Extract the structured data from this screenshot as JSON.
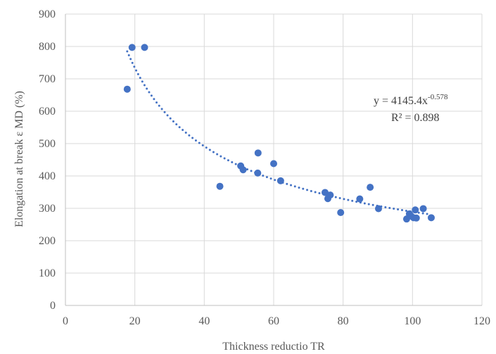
{
  "chart_data": {
    "type": "scatter",
    "xlabel": "Thickness reductio TR",
    "ylabel": "Elongation at break ε MD (%)",
    "xlim": [
      0,
      120
    ],
    "ylim": [
      0,
      900
    ],
    "xticks": [
      0,
      20,
      40,
      60,
      80,
      100,
      120
    ],
    "yticks": [
      0,
      100,
      200,
      300,
      400,
      500,
      600,
      700,
      800,
      900
    ],
    "xtick_labels": [
      "0",
      "20",
      "40",
      "60",
      "80",
      "100",
      "120"
    ],
    "ytick_labels": [
      "0",
      "100",
      "200",
      "300",
      "400",
      "500",
      "600",
      "700",
      "800",
      "900"
    ],
    "grid": true,
    "legend": "none",
    "marker_color": "#4472C4",
    "points": [
      {
        "x": 17.8,
        "y": 668
      },
      {
        "x": 19.2,
        "y": 797
      },
      {
        "x": 22.8,
        "y": 797
      },
      {
        "x": 44.5,
        "y": 368
      },
      {
        "x": 50.5,
        "y": 431
      },
      {
        "x": 51.2,
        "y": 419
      },
      {
        "x": 55.5,
        "y": 471
      },
      {
        "x": 55.4,
        "y": 409
      },
      {
        "x": 60.0,
        "y": 438
      },
      {
        "x": 62.0,
        "y": 385
      },
      {
        "x": 74.8,
        "y": 349
      },
      {
        "x": 75.6,
        "y": 330
      },
      {
        "x": 76.3,
        "y": 341
      },
      {
        "x": 79.3,
        "y": 287
      },
      {
        "x": 84.8,
        "y": 329
      },
      {
        "x": 87.8,
        "y": 365
      },
      {
        "x": 90.2,
        "y": 299
      },
      {
        "x": 98.3,
        "y": 267
      },
      {
        "x": 99.1,
        "y": 283
      },
      {
        "x": 99.6,
        "y": 276
      },
      {
        "x": 100.3,
        "y": 271
      },
      {
        "x": 100.8,
        "y": 295
      },
      {
        "x": 101.1,
        "y": 270
      },
      {
        "x": 103.1,
        "y": 299
      },
      {
        "x": 105.4,
        "y": 271
      }
    ],
    "trendline": {
      "type": "power",
      "coefficient": 4145.4,
      "exponent": -0.578,
      "x_range": [
        17.8,
        105.4
      ],
      "color": "#4472C4",
      "style": "dotted",
      "equation_base": "y = 4145.4x",
      "equation_exponent": "-0.578",
      "r_squared_text": "R² = 0.898"
    }
  }
}
